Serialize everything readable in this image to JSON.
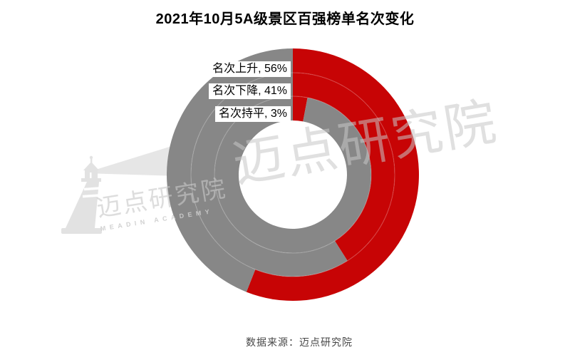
{
  "header": {
    "title": "2021年10月5A级景区百强榜单名次变化"
  },
  "footer": {
    "source_note": "数据来源：迈点研究院"
  },
  "watermark": {
    "brand_cn": "迈点研究院",
    "brand_en": "MEADIN ACADEMY"
  },
  "chart_data": {
    "type": "donut",
    "title": "2021年10月5A级景区百强榜单名次变化",
    "unit": "%",
    "categories": [
      "名次上升",
      "名次下降",
      "名次持平"
    ],
    "values": [
      56,
      41,
      3
    ],
    "data_labels": [
      "名次上升, 56%",
      "名次下降, 41%",
      "名次持平, 3%"
    ],
    "colors": {
      "value_arc": "#c70405",
      "remainder_arc": "#878787"
    },
    "layout_hints": {
      "rings": "three concentric rings, outer to inner = 名次上升 / 名次下降 / 名次持平",
      "arc_start": "12 o'clock, clockwise",
      "labels_position": "callouts at upper left, one per ring"
    }
  }
}
